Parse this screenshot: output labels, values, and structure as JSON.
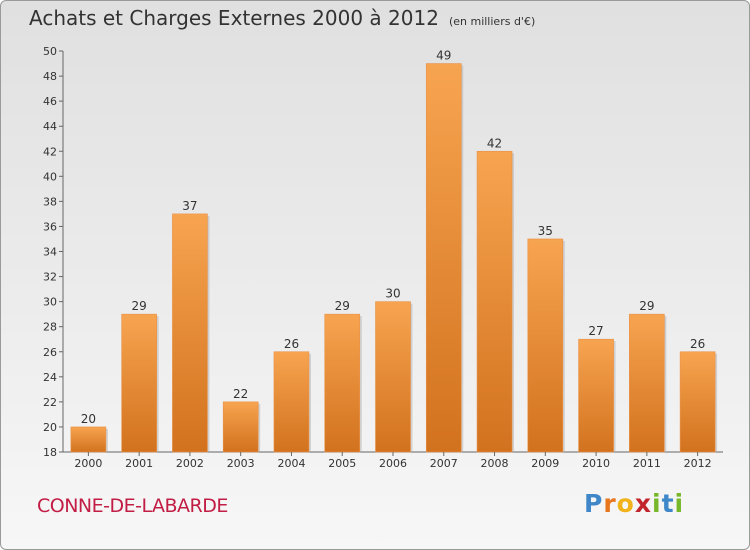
{
  "title": "Achats et Charges Externes 2000 à 2012",
  "unit_label": "(en milliers d'€)",
  "location": "CONNE-DE-LABARDE",
  "logo_text": "Proxiti",
  "colors": {
    "bar_top": "#f7a450",
    "bar_bottom": "#d2721e",
    "location_text": "#c21d45",
    "logo_letters": [
      "#3f87c8",
      "#e8761d",
      "#f2b21a",
      "#c2252b",
      "#76b82a",
      "#3f87c8",
      "#76b82a"
    ]
  },
  "chart_data": {
    "type": "bar",
    "categories": [
      "2000",
      "2001",
      "2002",
      "2003",
      "2004",
      "2005",
      "2006",
      "2007",
      "2008",
      "2009",
      "2010",
      "2011",
      "2012"
    ],
    "values": [
      20,
      29,
      37,
      22,
      26,
      29,
      30,
      49,
      42,
      35,
      27,
      29,
      26
    ],
    "ylim": [
      18,
      50
    ],
    "yticks": [
      18,
      20,
      22,
      24,
      26,
      28,
      30,
      32,
      34,
      36,
      38,
      40,
      42,
      44,
      46,
      48,
      50
    ],
    "grid": false,
    "data_labels": true
  }
}
